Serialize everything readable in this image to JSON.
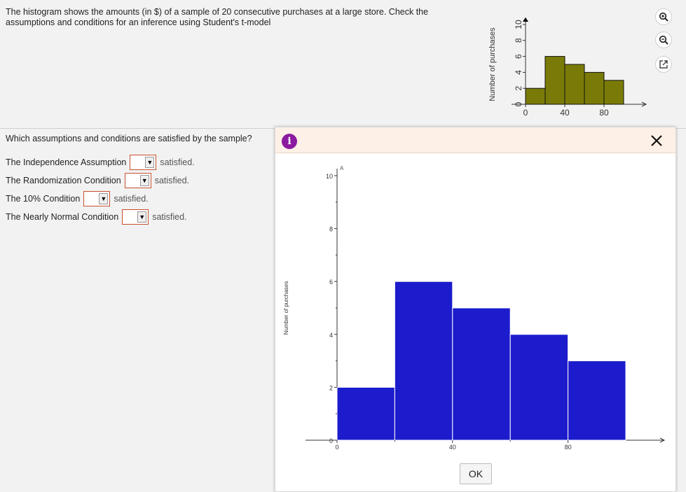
{
  "question": {
    "text": "The histogram shows the amounts (in $) of a sample of 20 consecutive purchases at a large store. Check the assumptions and conditions for an inference using Student's t-model"
  },
  "prompt": "Which assumptions and conditions are satisfied by the sample?",
  "conditions": [
    {
      "label": "The Independence Assumption",
      "value": "",
      "suffix": "satisfied."
    },
    {
      "label": "The Randomization Condition",
      "value": "",
      "suffix": "satisfied."
    },
    {
      "label": "The 10% Condition",
      "value": "",
      "suffix": "satisfied."
    },
    {
      "label": "The Nearly Normal Condition",
      "value": "",
      "suffix": "satisfied."
    }
  ],
  "tools": [
    "zoom-in-icon",
    "zoom-out-icon",
    "popout-icon"
  ],
  "dialog": {
    "ok_label": "OK",
    "close_label": "X",
    "info_label": "i"
  },
  "chart_data": [
    {
      "type": "bar",
      "role": "thumbnail",
      "bins": [
        [
          0,
          20
        ],
        [
          20,
          40
        ],
        [
          40,
          60
        ],
        [
          60,
          80
        ],
        [
          80,
          100
        ]
      ],
      "values": [
        2,
        6,
        5,
        4,
        3
      ],
      "ylabel": "Number of purchases",
      "xlabel": "",
      "xticks": [
        "0",
        "40",
        "80"
      ],
      "yticks": [
        "0",
        "2",
        "4",
        "6",
        "8",
        "10"
      ],
      "ylim": [
        0,
        10
      ],
      "color": "#7a7a08"
    },
    {
      "type": "bar",
      "role": "enlarged",
      "bins": [
        [
          0,
          20
        ],
        [
          20,
          40
        ],
        [
          40,
          60
        ],
        [
          60,
          80
        ],
        [
          80,
          100
        ]
      ],
      "values": [
        2,
        6,
        5,
        4,
        3
      ],
      "ylabel": "Number of purchases",
      "xlabel": "",
      "xticks": [
        "0",
        "40",
        "80"
      ],
      "yticks": [
        "0",
        "2",
        "4",
        "6",
        "8",
        "10"
      ],
      "ylim": [
        0,
        10
      ],
      "color": "#1c1ccc",
      "corner_mark": "A"
    }
  ]
}
